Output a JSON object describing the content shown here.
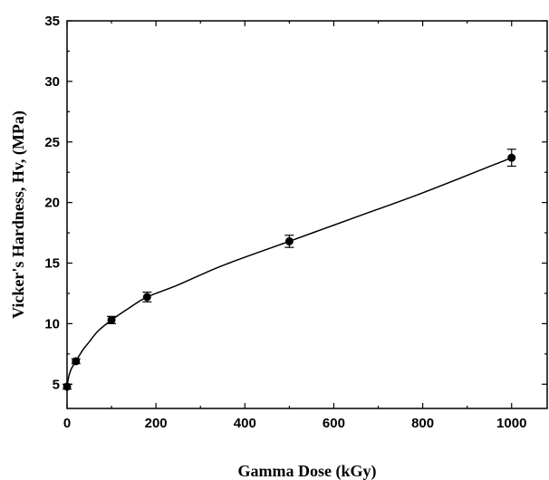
{
  "chart_data": {
    "type": "scatter",
    "title": "",
    "xlabel": "Gamma Dose (kGy)",
    "ylabel": "Vicker's Hardness, Hv, (MPa)",
    "xlim": [
      0,
      1080
    ],
    "ylim": [
      3,
      35
    ],
    "xticks": [
      0,
      200,
      400,
      600,
      800,
      1000
    ],
    "yticks": [
      5,
      10,
      15,
      20,
      25,
      30,
      35
    ],
    "grid": false,
    "legend": "none",
    "marker_color": "#000000",
    "series": [
      {
        "points": [
          {
            "x": 0,
            "y": 4.8,
            "err": 0.2
          },
          {
            "x": 20,
            "y": 6.9,
            "err": 0.2
          },
          {
            "x": 100,
            "y": 10.3,
            "err": 0.3
          },
          {
            "x": 180,
            "y": 12.2,
            "err": 0.4
          },
          {
            "x": 500,
            "y": 16.8,
            "err": 0.5
          },
          {
            "x": 1000,
            "y": 23.7,
            "err": 0.7
          }
        ]
      }
    ],
    "fit_curve": {
      "x": [
        0,
        2,
        5,
        10,
        20,
        35,
        50,
        70,
        100,
        140,
        180,
        250,
        350,
        500,
        650,
        800,
        1000
      ],
      "y": [
        4.8,
        5.3,
        5.8,
        6.3,
        6.9,
        7.8,
        8.5,
        9.4,
        10.3,
        11.3,
        12.2,
        13.2,
        14.8,
        16.8,
        18.8,
        20.8,
        23.7
      ]
    }
  }
}
